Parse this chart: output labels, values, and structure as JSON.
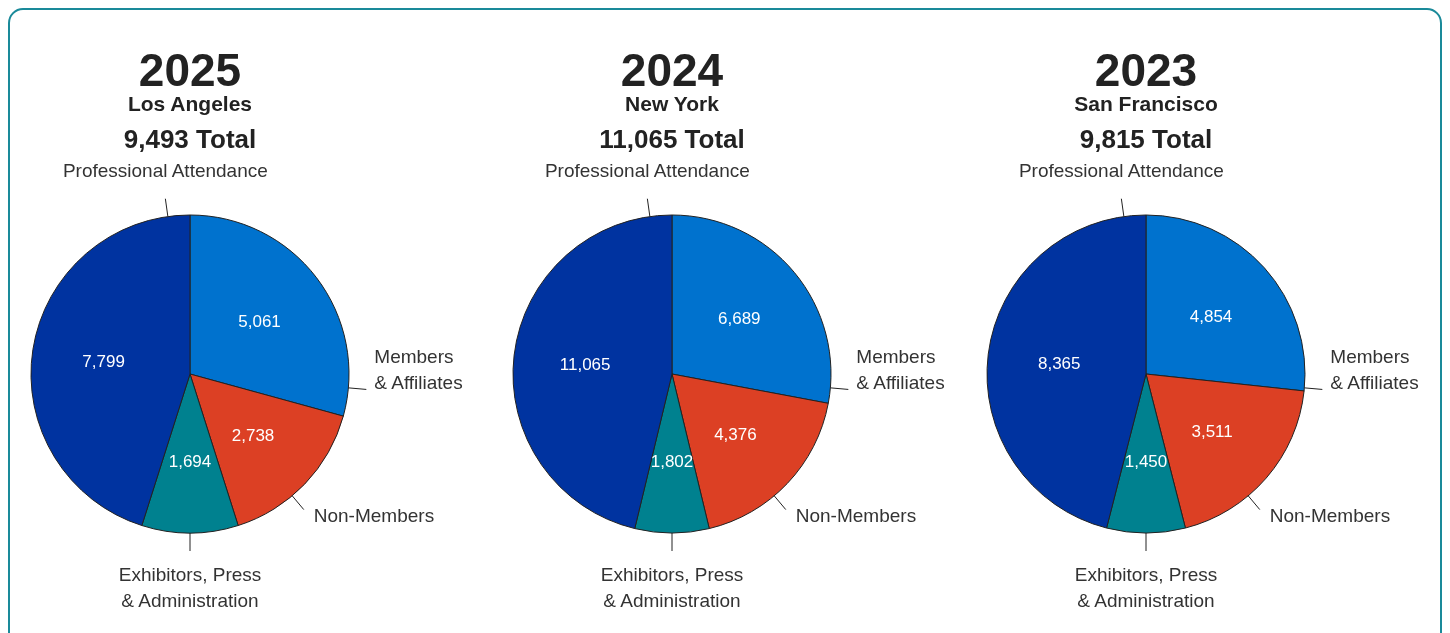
{
  "chart_data": [
    {
      "type": "pie",
      "title": "2025",
      "subtitle": "Los Angeles",
      "annotations": [
        "9,493 Total"
      ],
      "categories": [
        "Members & Affiliates",
        "Non-Members",
        "Exhibitors, Press & Administration",
        "Professional Attendance"
      ],
      "values": [
        5061,
        2738,
        1694,
        7799
      ],
      "colors": [
        "#0072ce",
        "#dc4024",
        "#00818f",
        "#0033a0"
      ],
      "value_labels": [
        "5,061",
        "2,738",
        "1,694",
        "7,799"
      ]
    },
    {
      "type": "pie",
      "title": "2024",
      "subtitle": "New York",
      "annotations": [
        "11,065 Total"
      ],
      "categories": [
        "Members & Affiliates",
        "Non-Members",
        "Exhibitors, Press & Administration",
        "Professional Attendance"
      ],
      "values": [
        6689,
        4376,
        1802,
        11065
      ],
      "colors": [
        "#0072ce",
        "#dc4024",
        "#00818f",
        "#0033a0"
      ],
      "value_labels": [
        "6,689",
        "4,376",
        "1,802",
        "11,065"
      ]
    },
    {
      "type": "pie",
      "title": "2023",
      "subtitle": "San Francisco",
      "annotations": [
        "9,815 Total"
      ],
      "categories": [
        "Members & Affiliates",
        "Non-Members",
        "Exhibitors, Press & Administration",
        "Professional Attendance"
      ],
      "values": [
        4854,
        3511,
        1450,
        8365
      ],
      "colors": [
        "#0072ce",
        "#dc4024",
        "#00818f",
        "#0033a0"
      ],
      "value_labels": [
        "4,854",
        "3,511",
        "1,450",
        "8,365"
      ]
    }
  ]
}
